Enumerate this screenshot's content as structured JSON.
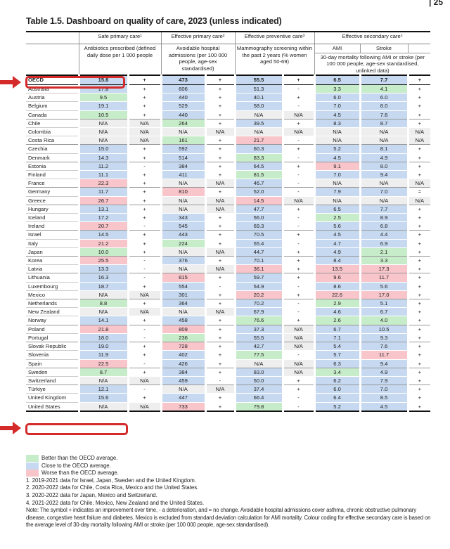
{
  "page_number": "| 25",
  "title": "Table 1.5. Dashboard on quality of care, 2023 (unless indicated)",
  "header": {
    "groups": [
      "Safe primary care¹",
      "Effective primary care²",
      "Effective preventive care³",
      "Effective secondary care⁴"
    ],
    "antibiotics": "Antibiotics prescribed (defined daily dose per 1 000 people",
    "admissions": "Avoidable hospital admissions (per 100 000 people, age-sex standardised)",
    "mammography": "Mammography screening within the past 2 years (% women aged 50-69)",
    "ami": "AMI",
    "stroke": "Stroke",
    "mortality": "30-day mortality following AMI or stroke (per 100 000 people, age-sex standardised, unlinked data)"
  },
  "colors": {
    "b": "#c6d9f0",
    "g": "#c7ecc9",
    "r": "#f8c5cb",
    "n": "#eeeeee",
    "highlight": "#d42a2a"
  },
  "rows": [
    {
      "country": "OECD",
      "values": [
        "15.6",
        "+",
        "473",
        "+",
        "55.5",
        "+",
        "6.5",
        "7.7",
        "+"
      ],
      "codes": "bwbwbwbbw"
    },
    {
      "country": "Australia",
      "values": [
        "17.8",
        "+",
        "606",
        "+",
        "51.3",
        "-",
        "3.3",
        "4.1",
        "+"
      ],
      "codes": "bwbwbwggw"
    },
    {
      "country": "Austria",
      "values": [
        "9.5",
        "+",
        "440",
        "+",
        "40.1",
        "+",
        "6.0",
        "6.0",
        "+"
      ],
      "codes": "gwbwbwbbw"
    },
    {
      "country": "Belgium",
      "values": [
        "19.1",
        "+",
        "529",
        "+",
        "58.0",
        "-",
        "7.0",
        "8.0",
        "+"
      ],
      "codes": "bwbwbwbbw"
    },
    {
      "country": "Canada",
      "values": [
        "10.5",
        "+",
        "440",
        "+",
        "N/A",
        "N/A",
        "4.5",
        "7.6",
        "+"
      ],
      "codes": "gwbwnnbbw",
      "sep": true
    },
    {
      "country": "Chile",
      "values": [
        "N/A",
        "N/A",
        "264",
        "+",
        "39.5",
        "+",
        "8.3",
        "8.7",
        "+"
      ],
      "codes": "nngwbwbbw"
    },
    {
      "country": "Colombia",
      "values": [
        "N/A",
        "N/A",
        "N/A",
        "N/A",
        "N/A",
        "N/A",
        "N/A",
        "N/A",
        "N/A"
      ],
      "codes": "nnnnnnnnn"
    },
    {
      "country": "Costa Rica",
      "values": [
        "N/A",
        "N/A",
        "161",
        "+",
        "21.7",
        "-",
        "N/A",
        "N/A",
        "N/A"
      ],
      "codes": "nngwrwnnn",
      "sep": true
    },
    {
      "country": "Czechia",
      "values": [
        "15.0",
        "+",
        "592",
        "+",
        "60.3",
        "+",
        "5.2",
        "8.1",
        "+"
      ],
      "codes": "bwbwbwbbw"
    },
    {
      "country": "Denmark",
      "values": [
        "14.3",
        "+",
        "514",
        "+",
        "83.3",
        "-",
        "4.5",
        "4.9",
        "+"
      ],
      "codes": "bwbwgwbbw",
      "sep": true
    },
    {
      "country": "Estonia",
      "values": [
        "11.2",
        "-",
        "384",
        "+",
        "64.5",
        "+",
        "9.1",
        "8.0",
        "+"
      ],
      "codes": "bwbwbwrbw"
    },
    {
      "country": "Finland",
      "values": [
        "11.1",
        "+",
        "411",
        "+",
        "81.5",
        "-",
        "7.0",
        "9.4",
        "+"
      ],
      "codes": "bwbwgwbbw"
    },
    {
      "country": "France",
      "values": [
        "22.3",
        "+",
        "N/A",
        "N/A",
        "46.7",
        "-",
        "N/A",
        "N/A",
        "N/A"
      ],
      "codes": "rwnnbwnnn",
      "sep": true
    },
    {
      "country": "Germany",
      "values": [
        "11.7",
        "+",
        "810",
        "+",
        "52.0",
        "-",
        "7.9",
        "7.0",
        "="
      ],
      "codes": "bwrwbwbbw"
    },
    {
      "country": "Greece",
      "values": [
        "26.7",
        "+",
        "N/A",
        "N/A",
        "14.5",
        "N/A",
        "N/A",
        "N/A",
        "N/A"
      ],
      "codes": "rwnnrnnnn",
      "sep": true
    },
    {
      "country": "Hungary",
      "values": [
        "13.1",
        "+",
        "N/A",
        "N/A",
        "47.7",
        "+",
        "6.5",
        "7.7",
        "+"
      ],
      "codes": "bwnnbwbbw"
    },
    {
      "country": "Iceland",
      "values": [
        "17.2",
        "+",
        "343",
        "+",
        "56.0",
        "-",
        "2.5",
        "8.9",
        "+"
      ],
      "codes": "bwbwbwgbw"
    },
    {
      "country": "Ireland",
      "values": [
        "20.7",
        "-",
        "545",
        "+",
        "69.3",
        "-",
        "5.6",
        "6.8",
        "+"
      ],
      "codes": "rwbwbwbbw",
      "sep": true
    },
    {
      "country": "Israel",
      "values": [
        "14.5",
        "+",
        "443",
        "+",
        "70.5",
        "+",
        "4.5",
        "4.4",
        "+"
      ],
      "codes": "bwbwbwbbw"
    },
    {
      "country": "Italy",
      "values": [
        "21.2",
        "+",
        "224",
        "+",
        "55.4",
        "-",
        "4.7",
        "6.9",
        "+"
      ],
      "codes": "rwgwbwbbw"
    },
    {
      "country": "Japan",
      "values": [
        "10.0",
        "+",
        "N/A",
        "N/A",
        "44.7",
        "+",
        "4.9",
        "2.1",
        "+"
      ],
      "codes": "gwnnbwbgw",
      "sep": true
    },
    {
      "country": "Korea",
      "values": [
        "25.5",
        "-",
        "376",
        "+",
        "70.1",
        "+",
        "8.4",
        "3.3",
        "+"
      ],
      "codes": "rwbwbwbgw"
    },
    {
      "country": "Latvia",
      "values": [
        "13.3",
        "-",
        "N/A",
        "N/A",
        "36.1",
        "+",
        "13.5",
        "17.3",
        "+"
      ],
      "codes": "bwnnrwrrw",
      "sep": true
    },
    {
      "country": "Lithuania",
      "values": [
        "16.3",
        "-",
        "815",
        "+",
        "59.7",
        "+",
        "9.6",
        "11.7",
        "+"
      ],
      "codes": "bwrwbwrrw"
    },
    {
      "country": "Luxembourg",
      "values": [
        "18.7",
        "+",
        "554",
        "-",
        "54.9",
        "-",
        "8.6",
        "5.6",
        "+"
      ],
      "codes": "bwbwbwbbw"
    },
    {
      "country": "Mexico",
      "values": [
        "N/A",
        "N/A",
        "301",
        "+",
        "20.2",
        "+",
        "22.6",
        "17.0",
        "+"
      ],
      "codes": "nnbwrwrrw",
      "sep": true
    },
    {
      "country": "Netherlands",
      "values": [
        "8.8",
        "+",
        "364",
        "+",
        "70.2",
        "-",
        "2.9",
        "5.1",
        "+"
      ],
      "codes": "gwbwbwgbw"
    },
    {
      "country": "New Zealand",
      "values": [
        "N/A",
        "N/A",
        "N/A",
        "N/A",
        "67.9",
        "-",
        "4.6",
        "6.7",
        "+"
      ],
      "codes": "nnnnbwbbw"
    },
    {
      "country": "Norway",
      "values": [
        "14.1",
        "+",
        "458",
        "+",
        "76.6",
        "+",
        "2.6",
        "4.0",
        "+"
      ],
      "codes": "bwbwgwggw",
      "sep": true
    },
    {
      "country": "Poland",
      "values": [
        "21.8",
        "-",
        "809",
        "+",
        "37.3",
        "N/A",
        "6.7",
        "10.5",
        "+"
      ],
      "codes": "rwrwbnbbw"
    },
    {
      "country": "Portugal",
      "values": [
        "18.0",
        "-",
        "236",
        "+",
        "55.5",
        "N/A",
        "7.1",
        "9.3",
        "+"
      ],
      "codes": "bwgwbnbbw",
      "sep": true
    },
    {
      "country": "Slovak Republic",
      "values": [
        "19.0",
        "+",
        "728",
        "+",
        "42.7",
        "N/A",
        "5.4",
        "7.6",
        "+"
      ],
      "codes": "bwrwbnbbw"
    },
    {
      "country": "Slovenia",
      "values": [
        "11.9",
        "+",
        "402",
        "+",
        "77.5",
        "-",
        "5.7",
        "11.7",
        "+"
      ],
      "codes": "bwbwgwbrw"
    },
    {
      "country": "Spain",
      "values": [
        "22.5",
        "-",
        "426",
        "+",
        "N/A",
        "N/A",
        "6.3",
        "9.4",
        "+"
      ],
      "codes": "rwbwnnbbw",
      "sep": true
    },
    {
      "country": "Sweden",
      "values": [
        "8.7",
        "+",
        "384",
        "+",
        "83.0",
        "N/A",
        "3.4",
        "4.9",
        "+"
      ],
      "codes": "gwbwbngbw"
    },
    {
      "country": "Switzerland",
      "values": [
        "N/A",
        "N/A",
        "459",
        "-",
        "50.0",
        "+",
        "6.2",
        "7.9",
        "+"
      ],
      "codes": "nnbwbwbbw",
      "sep": true
    },
    {
      "country": "Türkiye",
      "values": [
        "12.1",
        "-",
        "N/A",
        "N/A",
        "37.4",
        "+",
        "6.0",
        "7.0",
        "+"
      ],
      "codes": "bwnnbwbbw"
    },
    {
      "country": "United Kingdom",
      "values": [
        "15.6",
        "+",
        "447",
        "+",
        "66.4",
        "-",
        "6.4",
        "8.5",
        "+"
      ],
      "codes": "bwbwbwbbw"
    },
    {
      "country": "United States",
      "values": [
        "N/A",
        "N/A",
        "733",
        "+",
        "79.8",
        "-",
        "5.2",
        "4.5",
        "+"
      ],
      "codes": "nnrwgwbbw"
    }
  ],
  "legend": {
    "better": "Better than the OECD average.",
    "close": "Close to the OECD average.",
    "worse": "Worse than the OECD average."
  },
  "footnotes": [
    "1. 2019-2021 data for Israel, Japan, Sweden and the United Kingdom.",
    "2. 2020-2022 data for Chile, Costa Rica, Mexico and the United States.",
    "3. 2020-2022 data for Japan, Mexico and Switzerland.",
    "4. 2021-2022 data for Chile, Mexico, New Zealand and the United States."
  ],
  "note": "Note: The symbol + indicates an improvement over time, - a deterioration, and = no change. Avoidable hospital admissions cover asthma, chronic obstructive pulmonary disease, congestive heart failure and diabetes. Mexico is excluded from standard deviation calculation for AMI mortality. Colour coding for effective secondary care is based on the average level of 30-day mortality following AMI or stroke (per 100 000 people, age-sex standardised)."
}
